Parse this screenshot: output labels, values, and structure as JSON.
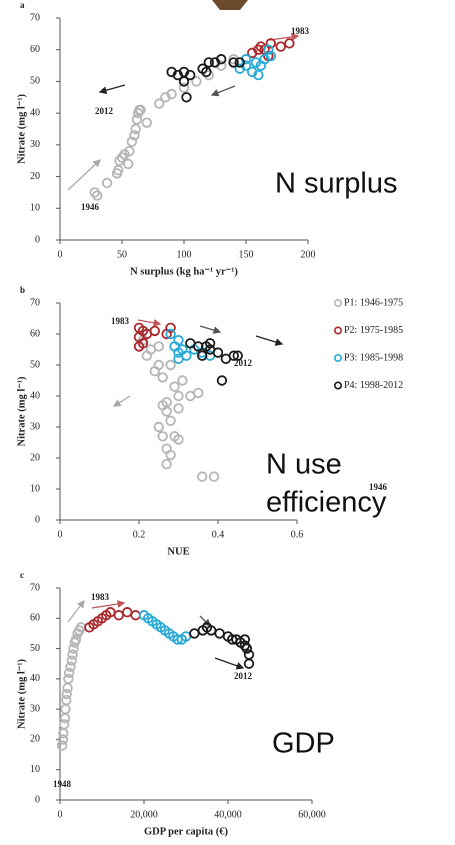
{
  "chart_data": [
    {
      "type": "scatter",
      "panel": "a",
      "callout": [
        "N surplus"
      ],
      "xlabel": "N surplus (kg ha⁻¹ yr⁻¹)",
      "ylabel": "Nitrate (mg l⁻¹)",
      "xlim": [
        0,
        200
      ],
      "ylim": [
        0,
        70
      ],
      "xticks": [
        0,
        50,
        100,
        150,
        200
      ],
      "yticks": [
        0,
        10,
        20,
        30,
        40,
        50,
        60,
        70
      ],
      "annotations": [
        "1983",
        "2012",
        "1946"
      ],
      "series": [
        {
          "color": "#b5b5b5",
          "x": [
            28,
            30,
            38,
            46,
            47,
            48,
            50,
            52,
            55,
            56,
            58,
            60,
            61,
            62,
            63,
            64,
            65,
            70,
            80,
            85,
            90,
            100,
            110,
            120,
            130,
            140
          ],
          "y": [
            15,
            14,
            18,
            21,
            22,
            25,
            26,
            27,
            24,
            28,
            31,
            33,
            35,
            38,
            40,
            41,
            41,
            37,
            43,
            45,
            46,
            48,
            50,
            52,
            55,
            57
          ]
        },
        {
          "color": "#a8282c",
          "x": [
            155,
            160,
            162,
            165,
            170,
            178,
            185,
            168
          ],
          "y": [
            59,
            60,
            61,
            60,
            62,
            61,
            62,
            58
          ]
        },
        {
          "color": "#29a9d6",
          "x": [
            145,
            150,
            155,
            158,
            160,
            162,
            165,
            168,
            170,
            150
          ],
          "y": [
            54,
            55,
            53,
            56,
            52,
            55,
            57,
            60,
            58,
            57
          ]
        },
        {
          "color": "#1a1a1a",
          "x": [
            90,
            95,
            100,
            102,
            105,
            115,
            118,
            120,
            125,
            130,
            140,
            145,
            100
          ],
          "y": [
            53,
            52,
            50,
            45,
            52,
            54,
            53,
            56,
            56,
            57,
            56,
            56,
            53
          ]
        }
      ]
    },
    {
      "type": "scatter",
      "panel": "b",
      "callout": [
        "N use",
        "efficiency"
      ],
      "xlabel": "NUE",
      "ylabel": "Nitrate (mg l⁻¹)",
      "xlim": [
        0,
        0.6
      ],
      "ylim": [
        0,
        70
      ],
      "xticks": [
        0,
        0.2,
        0.4,
        0.6
      ],
      "yticks": [
        0,
        10,
        20,
        30,
        40,
        50,
        60,
        70
      ],
      "annotations": [
        "1983",
        "2012",
        "1946"
      ],
      "legend": "right",
      "series": [
        {
          "name": "P1: 1946-1975",
          "color": "#b5b5b5",
          "x": [
            0.36,
            0.39,
            0.27,
            0.28,
            0.27,
            0.29,
            0.3,
            0.26,
            0.25,
            0.28,
            0.27,
            0.3,
            0.26,
            0.27,
            0.33,
            0.35,
            0.3,
            0.29,
            0.31,
            0.26,
            0.24,
            0.25,
            0.28,
            0.22,
            0.23,
            0.25,
            0.21
          ],
          "y": [
            14,
            14,
            18,
            21,
            23,
            27,
            26,
            27,
            30,
            32,
            35,
            36,
            37,
            38,
            40,
            41,
            40,
            43,
            45,
            46,
            48,
            50,
            50,
            53,
            55,
            56,
            58
          ]
        },
        {
          "name": "P2: 1975-1985",
          "color": "#a8282c",
          "x": [
            0.2,
            0.21,
            0.2,
            0.21,
            0.2,
            0.24,
            0.28,
            0.27,
            0.22
          ],
          "y": [
            62,
            61,
            59,
            57,
            56,
            61,
            62,
            60,
            60
          ]
        },
        {
          "name": "P3: 1985-1998",
          "color": "#29a9d6",
          "x": [
            0.28,
            0.3,
            0.29,
            0.31,
            0.3,
            0.32,
            0.34,
            0.36,
            0.38,
            0.3
          ],
          "y": [
            60,
            58,
            56,
            55,
            54,
            53,
            55,
            54,
            53,
            52
          ]
        },
        {
          "name": "P4: 1998-2012",
          "color": "#1a1a1a",
          "x": [
            0.33,
            0.35,
            0.37,
            0.38,
            0.4,
            0.42,
            0.44,
            0.45,
            0.41,
            0.36,
            0.38
          ],
          "y": [
            57,
            56,
            56,
            55,
            54,
            52,
            53,
            53,
            45,
            53,
            57
          ]
        }
      ]
    },
    {
      "type": "scatter",
      "panel": "c",
      "callout": [
        "GDP"
      ],
      "xlabel": "GDP per capita (€)",
      "ylabel": "Nitrate (mg l⁻¹)",
      "xlim": [
        0,
        60000
      ],
      "ylim": [
        0,
        70
      ],
      "xticks": [
        0,
        {
          "value": 20000,
          "label": "20,000"
        },
        {
          "value": 40000,
          "label": "40,000"
        },
        {
          "value": 60000,
          "label": "60,000"
        }
      ],
      "yticks": [
        0,
        10,
        20,
        30,
        40,
        50,
        60,
        70
      ],
      "annotations": [
        "1983",
        "2012",
        "1948"
      ],
      "series": [
        {
          "color": "#b5b5b5",
          "x": [
            500,
            700,
            800,
            1000,
            1200,
            1300,
            1500,
            1600,
            1800,
            2000,
            2200,
            2500,
            2800,
            3000,
            3200,
            3500,
            3800,
            4200,
            4600,
            5000
          ],
          "y": [
            18,
            20,
            22,
            25,
            27,
            30,
            33,
            35,
            37,
            40,
            42,
            44,
            46,
            48,
            50,
            52,
            53,
            55,
            56,
            57
          ]
        },
        {
          "color": "#a8282c",
          "x": [
            7000,
            8000,
            9000,
            10000,
            11000,
            12000,
            14000,
            16000,
            18000
          ],
          "y": [
            57,
            58,
            59,
            60,
            61,
            62,
            61,
            62,
            61
          ]
        },
        {
          "color": "#29a9d6",
          "x": [
            20000,
            21000,
            22000,
            23000,
            24000,
            25000,
            26000,
            27000,
            28000,
            29000,
            30000
          ],
          "y": [
            61,
            60,
            59,
            58,
            57,
            56,
            55,
            54,
            53,
            53,
            54
          ]
        },
        {
          "color": "#1a1a1a",
          "x": [
            32000,
            34000,
            35000,
            36000,
            38000,
            40000,
            41000,
            42000,
            43000,
            44000,
            44500,
            45000,
            45000,
            44000
          ],
          "y": [
            55,
            56,
            57,
            56,
            55,
            54,
            53,
            53,
            52,
            51,
            50,
            48,
            45,
            53
          ]
        }
      ]
    }
  ]
}
